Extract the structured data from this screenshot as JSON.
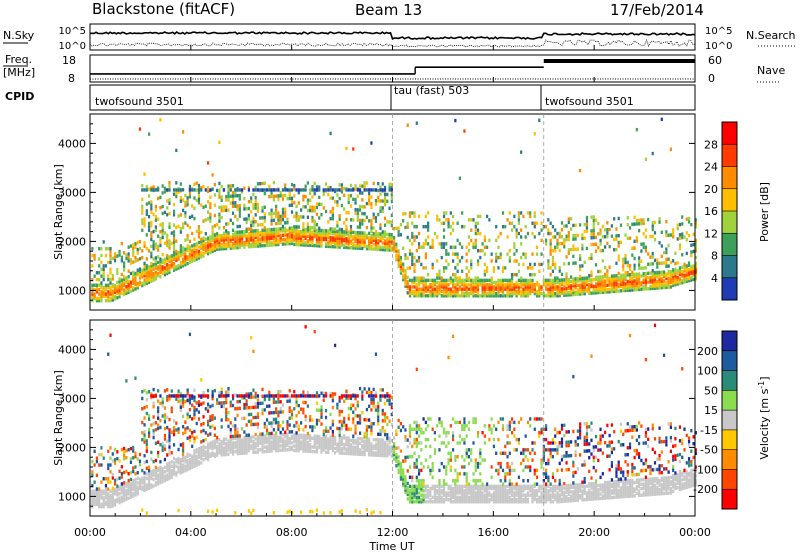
{
  "header": {
    "station": "Blackstone (fitACF)",
    "beam": "Beam 13",
    "date": "17/Feb/2014"
  },
  "chart_data": [
    {
      "type": "line",
      "name": "noise-panel",
      "left_label": "N.Sky",
      "right_label": "N.Search",
      "left_ticks": [
        "10^5",
        "10^0"
      ],
      "right_ticks": [
        "10^5",
        "10^0"
      ],
      "x_range_hours": [
        0,
        24
      ]
    },
    {
      "type": "line",
      "name": "freq-panel",
      "left_label_line1": "Freq.",
      "left_label_line2": "[MHz]",
      "right_label": "Nave",
      "left_ticks": [
        "18",
        "8"
      ],
      "right_ticks": [
        "60",
        "0"
      ],
      "freq_steps": [
        {
          "start_hour": 0,
          "end_hour": 12.9,
          "level": 0.7
        },
        {
          "start_hour": 12.9,
          "end_hour": 18.0,
          "level": 0.45
        },
        {
          "start_hour": 18.0,
          "end_hour": 24.0,
          "level": 0.22
        }
      ]
    },
    {
      "type": "table",
      "name": "cpid-bar",
      "label": "CPID",
      "segments": [
        {
          "start_hour": 0,
          "name": "twofsound 3501"
        },
        {
          "start_hour": 12.0,
          "name": "tau (fast) 503"
        },
        {
          "start_hour": 18.0,
          "name": "twofsound 3501"
        }
      ]
    },
    {
      "type": "heatmap",
      "name": "power-panel",
      "ylabel": "Slant Range [km]",
      "ylim": [
        600,
        4600
      ],
      "yticks": [
        1000,
        2000,
        3000,
        4000
      ],
      "colorbar_label": "Power [dB]",
      "colorbar_ticks": [
        "28",
        "24",
        "20",
        "16",
        "12",
        "8",
        "4"
      ],
      "colorbar_colors": [
        "#ff0000",
        "#ff3c00",
        "#ff8c00",
        "#ffbe00",
        "#a0d23c",
        "#3ca05a",
        "#2a7a8c",
        "#1e3cb4",
        "#0000ff"
      ]
    },
    {
      "type": "heatmap",
      "name": "velocity-panel",
      "ylabel": "Slant Range [km]",
      "ylim": [
        600,
        4600
      ],
      "yticks": [
        1000,
        2000,
        3000,
        4000
      ],
      "colorbar_label": "Velocity [m s",
      "colorbar_label_sup": "-1",
      "colorbar_label_end": "]",
      "colorbar_ticks": [
        "200",
        "100",
        "50",
        "15",
        "-15",
        "-50",
        "-100",
        "-200"
      ],
      "colorbar_colors": [
        "#1e28a0",
        "#1e5aa0",
        "#2a8c78",
        "#8cdc50",
        "#c8c8c8",
        "#ffc800",
        "#ff8c00",
        "#ff4600",
        "#ff0000"
      ]
    }
  ],
  "time_axis": {
    "xlabel": "Time UT",
    "ticks": [
      "00:00",
      "04:00",
      "08:00",
      "12:00",
      "16:00",
      "20:00",
      "00:00"
    ],
    "tick_hours": [
      0,
      4,
      8,
      12,
      16,
      20,
      24
    ]
  }
}
